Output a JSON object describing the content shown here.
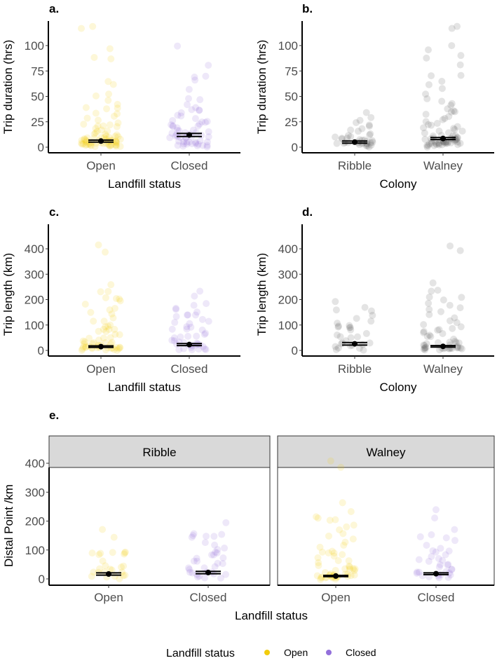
{
  "colors": {
    "open": "#F2CC0C",
    "closed": "#9370DB",
    "colony": "#555555",
    "strip": "#D9D9D9"
  },
  "legend": {
    "title": "Landfill status",
    "items": [
      "Open",
      "Closed"
    ]
  },
  "chart_data": [
    {
      "type": "scatter",
      "panel_label": "a.",
      "xlabel": "Landfill status",
      "ylabel": "Trip duration (hrs)",
      "ylim": [
        0,
        120
      ],
      "yticks": [
        0,
        25,
        50,
        75,
        100
      ],
      "categories": [
        "Open",
        "Closed"
      ],
      "color_keys": [
        "open",
        "closed"
      ],
      "groups": [
        {
          "mean": 6,
          "ci": [
            5,
            7
          ],
          "values": [
            118,
            118,
            97,
            89,
            87,
            65,
            61,
            51,
            51,
            46,
            43,
            39,
            39,
            38,
            34,
            33,
            30,
            28,
            26,
            24,
            23,
            22,
            21,
            20,
            19,
            18,
            17,
            16,
            15,
            14,
            13,
            12,
            12,
            11,
            11,
            10,
            10,
            9,
            9,
            9,
            8,
            8,
            8,
            8,
            7,
            7,
            7,
            7,
            7,
            6,
            6,
            6,
            6,
            6,
            6,
            5,
            5,
            5,
            5,
            5,
            5,
            4,
            4,
            4,
            4,
            4,
            4,
            3,
            3,
            3,
            3,
            3,
            3,
            2,
            2,
            2,
            2,
            2,
            1,
            1,
            1,
            1
          ]
        },
        {
          "mean": 12,
          "ci": [
            10.5,
            13.5
          ],
          "values": [
            99,
            82,
            70,
            69,
            65,
            57,
            48,
            47,
            41,
            39,
            37,
            36,
            35,
            34,
            32,
            30,
            28,
            27,
            26,
            25,
            24,
            23,
            22,
            21,
            20,
            19,
            18,
            18,
            17,
            16,
            15,
            15,
            14,
            13,
            13,
            12,
            12,
            11,
            11,
            10,
            10,
            9,
            9,
            8,
            8,
            7,
            7,
            6,
            6,
            5,
            5,
            5,
            4,
            4,
            4,
            3,
            3,
            3,
            2,
            2,
            2,
            1,
            1
          ]
        }
      ]
    },
    {
      "type": "scatter",
      "panel_label": "b.",
      "xlabel": "Colony",
      "ylabel": "Trip duration (hrs)",
      "ylim": [
        0,
        120
      ],
      "yticks": [
        0,
        25,
        50,
        75,
        100
      ],
      "categories": [
        "Ribble",
        "Walney"
      ],
      "color_keys": [
        "colony",
        "colony"
      ],
      "groups": [
        {
          "mean": 5,
          "ci": [
            4,
            6
          ],
          "values": [
            33,
            30,
            27,
            24,
            22,
            20,
            18,
            16,
            15,
            14,
            12,
            11,
            10,
            9,
            9,
            8,
            8,
            7,
            7,
            6,
            6,
            6,
            5,
            5,
            5,
            5,
            4,
            4,
            4,
            4,
            3,
            3,
            3,
            3,
            2,
            2,
            2,
            1,
            1
          ]
        },
        {
          "mean": 8.5,
          "ci": [
            7.5,
            9.5
          ],
          "values": [
            118,
            118,
            99,
            97,
            89,
            87,
            82,
            70,
            69,
            65,
            61,
            57,
            51,
            48,
            46,
            43,
            41,
            39,
            37,
            35,
            34,
            33,
            30,
            28,
            26,
            24,
            23,
            22,
            21,
            20,
            19,
            18,
            17,
            16,
            15,
            14,
            13,
            12,
            12,
            11,
            11,
            10,
            10,
            9,
            9,
            9,
            8,
            8,
            8,
            8,
            7,
            7,
            7,
            7,
            6,
            6,
            6,
            6,
            6,
            5,
            5,
            5,
            5,
            5,
            4,
            4,
            4,
            4,
            4,
            3,
            3,
            3,
            3,
            3,
            2,
            2,
            2,
            2,
            1,
            1,
            1
          ]
        }
      ]
    },
    {
      "type": "scatter",
      "panel_label": "c.",
      "xlabel": "Landfill status",
      "ylabel": "Trip length (km)",
      "ylim": [
        0,
        420
      ],
      "yticks": [
        0,
        100,
        200,
        300,
        400
      ],
      "categories": [
        "Open",
        "Closed"
      ],
      "color_keys": [
        "open",
        "closed"
      ],
      "groups": [
        {
          "mean": 15,
          "ci": [
            12,
            18
          ],
          "values": [
            412,
            388,
            262,
            235,
            228,
            210,
            205,
            200,
            190,
            180,
            170,
            160,
            150,
            140,
            130,
            120,
            110,
            100,
            95,
            90,
            88,
            85,
            80,
            75,
            70,
            65,
            60,
            55,
            50,
            45,
            40,
            38,
            35,
            32,
            30,
            28,
            25,
            22,
            20,
            18,
            16,
            15,
            14,
            12,
            11,
            10,
            9,
            8,
            7,
            6,
            5,
            4,
            3,
            2,
            12,
            10,
            8,
            6,
            4,
            15,
            20,
            25
          ]
        },
        {
          "mean": 23,
          "ci": [
            19,
            27
          ],
          "values": [
            235,
            210,
            190,
            180,
            170,
            160,
            150,
            145,
            140,
            135,
            130,
            120,
            115,
            110,
            100,
            95,
            90,
            85,
            80,
            75,
            70,
            65,
            60,
            55,
            50,
            45,
            40,
            35,
            32,
            30,
            28,
            25,
            22,
            20,
            18,
            16,
            14,
            12,
            10,
            8,
            6,
            4,
            2,
            20,
            25,
            30
          ]
        }
      ]
    },
    {
      "type": "scatter",
      "panel_label": "d.",
      "xlabel": "Colony",
      "ylabel": "Trip length (km)",
      "ylim": [
        0,
        420
      ],
      "yticks": [
        0,
        100,
        200,
        300,
        400
      ],
      "categories": [
        "Ribble",
        "Walney"
      ],
      "color_keys": [
        "colony",
        "colony"
      ],
      "groups": [
        {
          "mean": 26,
          "ci": [
            21,
            31
          ],
          "values": [
            190,
            170,
            160,
            150,
            140,
            130,
            120,
            110,
            100,
            95,
            90,
            88,
            85,
            80,
            70,
            60,
            55,
            50,
            45,
            40,
            35,
            30,
            25,
            20,
            18,
            15,
            12,
            10,
            8,
            5,
            3
          ]
        },
        {
          "mean": 16,
          "ci": [
            13,
            19
          ],
          "values": [
            412,
            388,
            262,
            235,
            228,
            210,
            205,
            200,
            190,
            180,
            170,
            160,
            150,
            140,
            130,
            120,
            110,
            100,
            95,
            90,
            85,
            80,
            75,
            70,
            65,
            60,
            55,
            50,
            45,
            40,
            35,
            30,
            28,
            25,
            22,
            20,
            18,
            16,
            15,
            14,
            12,
            11,
            10,
            9,
            8,
            7,
            6,
            5,
            4,
            3,
            2,
            10,
            8,
            6,
            12,
            15
          ]
        }
      ]
    },
    {
      "type": "scatter",
      "panel_label": "e.",
      "xlabel": "Landfill status",
      "ylabel": "Distal Point /km",
      "ylim": [
        0,
        420
      ],
      "yticks": [
        0,
        100,
        200,
        300,
        400
      ],
      "facets": [
        "Ribble",
        "Walney"
      ],
      "categories": [
        "Open",
        "Closed"
      ],
      "color_keys": [
        "open",
        "closed"
      ],
      "groups": [
        {
          "facet": "Ribble",
          "category": "Open",
          "mean": 17,
          "ci": [
            13,
            21
          ],
          "values": [
            168,
            140,
            90,
            90,
            88,
            88,
            87,
            87,
            85,
            62,
            50,
            45,
            40,
            35,
            30,
            28,
            25,
            22,
            20,
            18,
            15,
            12,
            10,
            8,
            5,
            2
          ]
        },
        {
          "facet": "Ribble",
          "category": "Closed",
          "mean": 22,
          "ci": [
            18,
            26
          ],
          "values": [
            190,
            160,
            155,
            150,
            150,
            145,
            140,
            130,
            120,
            110,
            100,
            95,
            90,
            85,
            80,
            75,
            70,
            65,
            60,
            55,
            50,
            45,
            40,
            35,
            30,
            28,
            25,
            22,
            20,
            18,
            15,
            12,
            10,
            8,
            5,
            2
          ]
        },
        {
          "facet": "Walney",
          "category": "Open",
          "mean": 10,
          "ci": [
            8,
            12
          ],
          "values": [
            412,
            388,
            262,
            235,
            215,
            210,
            205,
            200,
            190,
            180,
            170,
            160,
            150,
            140,
            130,
            120,
            110,
            100,
            95,
            90,
            85,
            80,
            75,
            70,
            65,
            60,
            55,
            50,
            45,
            40,
            38,
            35,
            32,
            30,
            28,
            25,
            22,
            20,
            18,
            16,
            15,
            14,
            12,
            11,
            10,
            9,
            8,
            7,
            6,
            5,
            4,
            3,
            2,
            1,
            10,
            8,
            6,
            4,
            12,
            15
          ]
        },
        {
          "facet": "Walney",
          "category": "Closed",
          "mean": 18,
          "ci": [
            15,
            21
          ],
          "values": [
            235,
            210,
            170,
            150,
            145,
            140,
            130,
            120,
            110,
            100,
            95,
            90,
            85,
            80,
            75,
            70,
            65,
            60,
            55,
            50,
            45,
            40,
            35,
            30,
            28,
            25,
            22,
            20,
            18,
            16,
            14,
            12,
            10,
            8,
            6,
            4,
            2
          ]
        }
      ]
    }
  ]
}
